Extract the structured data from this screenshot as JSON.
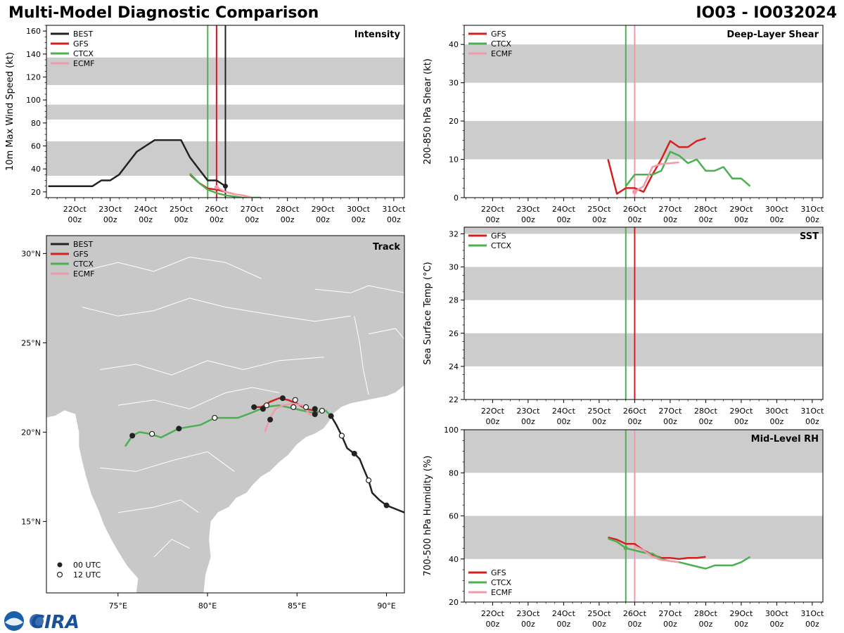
{
  "header": {
    "title": "Multi-Model Diagnostic Comparison",
    "storm_id": "IO03 - IO032024"
  },
  "logo_text": "CIRA",
  "colors": {
    "BEST": "#222222",
    "GFS": "#d62020",
    "CTCX": "#4caf50",
    "ECMF": "#f09aaa",
    "band": "#cccccc",
    "land": "#c8c8c8"
  },
  "time_ticks": [
    "22Oct",
    "23Oct",
    "24Oct",
    "25Oct",
    "26Oct",
    "27Oct",
    "28Oct",
    "29Oct",
    "30Oct",
    "31Oct"
  ],
  "time_tick_sub": "00z",
  "chart_data": [
    {
      "id": "intensity",
      "type": "line",
      "title": "Intensity",
      "ylabel": "10m Max Wind Speed (kt)",
      "xlim": [
        21.2,
        31.3
      ],
      "ylim": [
        15,
        165
      ],
      "yticks": [
        20,
        40,
        60,
        80,
        100,
        120,
        140,
        160
      ],
      "bands": [
        [
          34,
          64
        ],
        [
          83,
          96
        ],
        [
          113,
          137
        ]
      ],
      "vlines": [
        {
          "model": "CTCX",
          "x": 25.75
        },
        {
          "model": "ECMF",
          "x": 26.0
        },
        {
          "model": "BEST",
          "x": 26.25
        },
        {
          "model": "GFS",
          "x": 26.0
        }
      ],
      "legend": [
        "BEST",
        "GFS",
        "CTCX",
        "ECMF"
      ],
      "series": [
        {
          "name": "BEST",
          "x": [
            21.25,
            21.5,
            21.75,
            22.0,
            22.25,
            22.5,
            22.75,
            23.0,
            23.25,
            23.5,
            23.75,
            24.0,
            24.25,
            24.5,
            24.75,
            25.0,
            25.25,
            25.5,
            25.75,
            26.0,
            26.25
          ],
          "y": [
            25,
            25,
            25,
            25,
            25,
            25,
            30,
            30,
            35,
            45,
            55,
            60,
            65,
            65,
            65,
            65,
            50,
            40,
            30,
            30,
            25
          ]
        },
        {
          "name": "GFS",
          "x": [
            25.25,
            25.5,
            25.75,
            26.0,
            26.25,
            26.5
          ],
          "y": [
            35,
            28,
            23,
            22,
            20,
            18
          ]
        },
        {
          "name": "CTCX",
          "x": [
            25.25,
            25.5,
            25.75,
            26.0,
            26.25,
            26.5,
            26.75,
            27.0,
            27.25
          ],
          "y": [
            36,
            28,
            22,
            19,
            17,
            16,
            15,
            15,
            15
          ]
        },
        {
          "name": "ECMF",
          "x": [
            26.0,
            26.25,
            26.5,
            26.75,
            27.0
          ],
          "y": [
            24,
            20,
            18,
            17,
            15
          ]
        }
      ]
    },
    {
      "id": "shear",
      "type": "line",
      "title": "Deep-Layer Shear",
      "ylabel": "200-850 hPa Shear (kt)",
      "xlim": [
        21.2,
        31.3
      ],
      "ylim": [
        0,
        45
      ],
      "yticks": [
        0,
        10,
        20,
        30,
        40
      ],
      "bands": [
        [
          10,
          20
        ],
        [
          30,
          40
        ]
      ],
      "vlines": [
        {
          "model": "CTCX",
          "x": 25.75
        },
        {
          "model": "ECMF",
          "x": 26.0
        }
      ],
      "legend": [
        "GFS",
        "CTCX",
        "ECMF"
      ],
      "series": [
        {
          "name": "GFS",
          "x": [
            25.25,
            25.5,
            25.75,
            26.0,
            26.25,
            26.5,
            26.75,
            27.0,
            27.25,
            27.5,
            27.75,
            28.0
          ],
          "y": [
            10,
            1,
            2.5,
            2.5,
            1.5,
            6,
            10,
            14.8,
            13.2,
            13.2,
            14.8,
            15.5
          ]
        },
        {
          "name": "CTCX",
          "x": [
            25.75,
            26.0,
            26.25,
            26.5,
            26.75,
            27.0,
            27.25,
            27.5,
            27.75,
            28.0,
            28.25,
            28.5,
            28.75,
            29.0,
            29.25
          ],
          "y": [
            3,
            6,
            6,
            6,
            7,
            12,
            11,
            9,
            10,
            7,
            7,
            8,
            5,
            5,
            3
          ]
        },
        {
          "name": "ECMF",
          "x": [
            26.0,
            26.25,
            26.5,
            26.75,
            27.0,
            27.25
          ],
          "y": [
            1.5,
            3,
            8,
            8.8,
            9,
            9.2
          ]
        }
      ]
    },
    {
      "id": "track",
      "type": "scatter",
      "title": "Track",
      "xlim": [
        71.0,
        91.0
      ],
      "ylim": [
        11.0,
        31.0
      ],
      "xticks": [
        75,
        80,
        85,
        90
      ],
      "xtick_labels": [
        "75°E",
        "80°E",
        "85°E",
        "90°E"
      ],
      "yticks": [
        15,
        20,
        25,
        30
      ],
      "ytick_labels": [
        "15°N",
        "20°N",
        "25°N",
        "30°N"
      ],
      "legend": [
        "BEST",
        "GFS",
        "CTCX",
        "ECMF"
      ],
      "marker_legend": [
        "00 UTC",
        "12 UTC"
      ],
      "series": [
        {
          "name": "BEST",
          "lon": [
            91.0,
            90.5,
            90.0,
            89.6,
            89.2,
            89.0,
            88.7,
            88.5,
            88.2,
            87.8,
            87.5,
            87.2,
            86.9
          ],
          "lat": [
            15.5,
            15.7,
            15.9,
            16.2,
            16.6,
            17.3,
            18.0,
            18.5,
            18.8,
            19.1,
            19.8,
            20.4,
            20.9
          ],
          "dots00": [
            [
              90.0,
              15.9
            ],
            [
              88.2,
              18.8
            ],
            [
              86.9,
              20.9
            ]
          ],
          "dots12": [
            [
              89.0,
              17.3
            ],
            [
              87.5,
              19.8
            ]
          ]
        },
        {
          "name": "GFS",
          "lon": [
            82.5,
            82.7,
            83.0,
            83.5,
            84.0,
            84.5,
            85.0,
            85.5,
            86.0,
            86.2
          ],
          "lat": [
            21.4,
            21.4,
            21.4,
            21.7,
            21.9,
            21.8,
            21.6,
            21.3,
            21.2,
            21.1
          ],
          "dots00": [
            [
              82.6,
              21.4
            ],
            [
              84.2,
              21.9
            ],
            [
              86.0,
              21.3
            ],
            [
              83.5,
              20.7
            ]
          ],
          "dots12": [
            [
              83.3,
              21.5
            ]
          ]
        },
        {
          "name": "CTCX",
          "lon": [
            75.4,
            75.8,
            76.2,
            76.8,
            77.4,
            78.4,
            79.6,
            80.4,
            81.0,
            81.7,
            82.5,
            83.2,
            84.0,
            84.9,
            85.8,
            86.6,
            86.9
          ],
          "lat": [
            19.2,
            19.8,
            20.0,
            19.9,
            19.7,
            20.2,
            20.4,
            20.8,
            20.8,
            20.8,
            21.1,
            21.4,
            21.5,
            21.3,
            21.1,
            21.2,
            20.9
          ],
          "dots00": [
            [
              75.8,
              19.8
            ],
            [
              78.4,
              20.2
            ],
            [
              83.1,
              21.3
            ]
          ],
          "dots12": [
            [
              76.9,
              19.9
            ],
            [
              80.4,
              20.8
            ],
            [
              84.8,
              21.4
            ],
            [
              85.5,
              21.4
            ],
            [
              86.4,
              21.2
            ]
          ]
        },
        {
          "name": "ECMF",
          "lon": [
            83.2,
            83.5,
            83.8,
            84.2,
            84.8,
            85.3,
            85.7,
            86.1
          ],
          "lat": [
            20.0,
            20.8,
            21.3,
            21.5,
            21.6,
            21.5,
            21.0,
            20.9
          ],
          "dots00": [
            [
              86.0,
              21.0
            ]
          ],
          "dots12": [
            [
              84.9,
              21.8
            ]
          ]
        }
      ]
    },
    {
      "id": "sst",
      "type": "line",
      "title": "SST",
      "ylabel": "Sea Surface Temp (°C)",
      "xlim": [
        21.2,
        31.3
      ],
      "ylim": [
        22,
        32.4
      ],
      "yticks": [
        22,
        24,
        26,
        28,
        30,
        32
      ],
      "bands": [
        [
          24,
          26
        ],
        [
          28,
          30
        ],
        [
          32,
          32.4
        ]
      ],
      "vlines": [
        {
          "model": "CTCX",
          "x": 25.75
        },
        {
          "model": "GFS",
          "x": 26.0
        }
      ],
      "legend": [
        "GFS",
        "CTCX"
      ],
      "series": []
    },
    {
      "id": "rh",
      "type": "line",
      "title": "Mid-Level RH",
      "ylabel": "700-500 hPa Humidity (%)",
      "xlim": [
        21.2,
        31.3
      ],
      "ylim": [
        20,
        100
      ],
      "yticks": [
        20,
        40,
        60,
        80,
        100
      ],
      "bands": [
        [
          40,
          60
        ],
        [
          80,
          100
        ]
      ],
      "vlines": [
        {
          "model": "CTCX",
          "x": 25.75
        },
        {
          "model": "ECMF",
          "x": 26.0
        }
      ],
      "legend": [
        "GFS",
        "CTCX",
        "ECMF"
      ],
      "series": [
        {
          "name": "GFS",
          "x": [
            25.25,
            25.5,
            25.75,
            26.0,
            26.25,
            26.5,
            26.75,
            27.0,
            27.25,
            27.5,
            27.75,
            28.0
          ],
          "y": [
            50,
            49,
            47,
            47,
            44,
            42,
            40.5,
            40.5,
            40,
            40.5,
            40.5,
            41
          ]
        },
        {
          "name": "CTCX",
          "x": [
            25.25,
            25.5,
            25.75,
            26.0,
            26.25,
            26.5,
            26.75,
            27.0,
            27.25,
            27.5,
            27.75,
            28.0,
            28.25,
            28.5,
            28.75,
            29.0,
            29.25
          ],
          "y": [
            49.5,
            48,
            45,
            44,
            43,
            42.5,
            40,
            39,
            38.5,
            37.5,
            36.5,
            35.5,
            37,
            37,
            37,
            38.5,
            41
          ]
        },
        {
          "name": "ECMF",
          "x": [
            26.0,
            26.25,
            26.5,
            26.75,
            27.0,
            27.25
          ],
          "y": [
            46,
            44,
            41,
            39.5,
            39,
            38.5
          ]
        }
      ]
    }
  ]
}
